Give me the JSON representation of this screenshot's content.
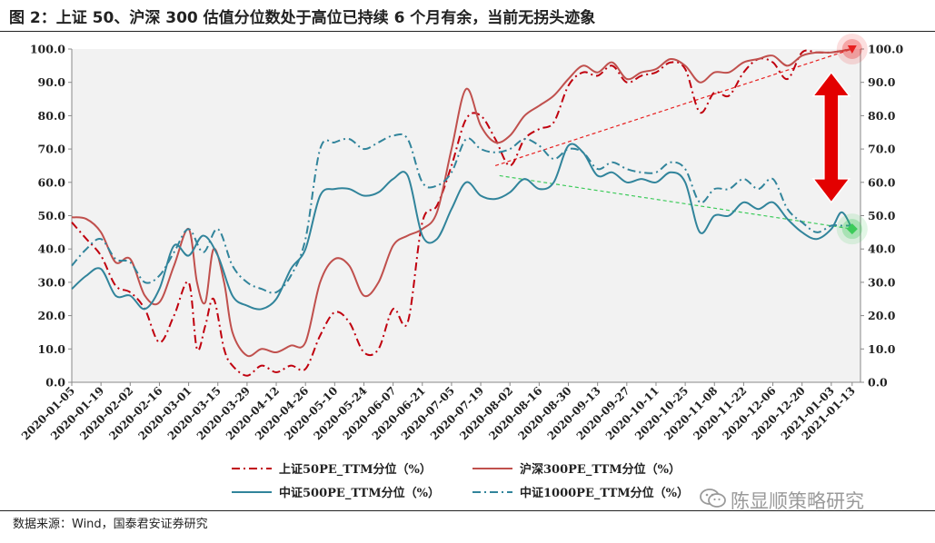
{
  "title": "图 2：上证 50、沪深 300 估值分位数处于高位已持续 6 个月有余，当前无拐头迹象",
  "source": "数据来源：Wind，国泰君安证券研究",
  "watermark": "陈显顺策略研究",
  "colors": {
    "sz50": "#C0000E",
    "hs300": "#C0504D",
    "zz500": "#31849B",
    "zz1000": "#31849B",
    "plot_bg": "#F2F2F2",
    "trend_red": "#E82020",
    "trend_green": "#3CCB5A",
    "arrow": "#E30000"
  },
  "chart_data": {
    "type": "line",
    "title": "",
    "ylim": [
      0,
      100
    ],
    "yticks": [
      "0.0",
      "10.0",
      "20.0",
      "30.0",
      "40.0",
      "50.0",
      "60.0",
      "70.0",
      "80.0",
      "90.0",
      "100.0"
    ],
    "y2ticks": [
      "0.0",
      "10.0",
      "20.0",
      "30.0",
      "40.0",
      "50.0",
      "60.0",
      "70.0",
      "80.0",
      "90.0",
      "100.0"
    ],
    "x_start": "2020-01-05",
    "x_end": "2021-01-17",
    "xticks": [
      "2020-01-05",
      "2020-01-19",
      "2020-02-02",
      "2020-02-16",
      "2020-03-01",
      "2020-03-15",
      "2020-03-29",
      "2020-04-12",
      "2020-04-26",
      "2020-05-10",
      "2020-05-24",
      "2020-06-07",
      "2020-06-21",
      "2020-07-05",
      "2020-07-19",
      "2020-08-02",
      "2020-08-16",
      "2020-08-30",
      "2020-09-13",
      "2020-09-27",
      "2020-10-11",
      "2020-10-25",
      "2020-11-08",
      "2020-11-22",
      "2020-12-06",
      "2020-12-20",
      "2021-01-03",
      "2021-01-13"
    ],
    "grid": false,
    "legend_position": "bottom",
    "series": [
      {
        "name": "上证50PE_TTM分位（%）",
        "style": "dashdot",
        "color_key": "sz50",
        "points": [
          [
            "2020-01-05",
            48
          ],
          [
            "2020-01-12",
            43
          ],
          [
            "2020-01-19",
            38
          ],
          [
            "2020-01-26",
            29
          ],
          [
            "2020-02-02",
            27
          ],
          [
            "2020-02-09",
            22
          ],
          [
            "2020-02-16",
            12
          ],
          [
            "2020-02-23",
            20
          ],
          [
            "2020-03-01",
            30
          ],
          [
            "2020-03-05",
            10
          ],
          [
            "2020-03-09",
            17
          ],
          [
            "2020-03-13",
            25
          ],
          [
            "2020-03-18",
            10
          ],
          [
            "2020-03-22",
            5
          ],
          [
            "2020-03-29",
            2
          ],
          [
            "2020-04-05",
            5
          ],
          [
            "2020-04-12",
            3
          ],
          [
            "2020-04-19",
            5
          ],
          [
            "2020-04-26",
            4
          ],
          [
            "2020-05-03",
            14
          ],
          [
            "2020-05-10",
            21
          ],
          [
            "2020-05-17",
            18
          ],
          [
            "2020-05-24",
            9
          ],
          [
            "2020-05-31",
            10
          ],
          [
            "2020-06-07",
            22
          ],
          [
            "2020-06-14",
            18
          ],
          [
            "2020-06-21",
            48
          ],
          [
            "2020-06-28",
            53
          ],
          [
            "2020-07-05",
            65
          ],
          [
            "2020-07-12",
            79
          ],
          [
            "2020-07-19",
            80
          ],
          [
            "2020-07-26",
            73
          ],
          [
            "2020-08-02",
            65
          ],
          [
            "2020-08-09",
            73
          ],
          [
            "2020-08-16",
            76
          ],
          [
            "2020-08-23",
            78
          ],
          [
            "2020-08-30",
            89
          ],
          [
            "2020-09-06",
            93
          ],
          [
            "2020-09-13",
            92
          ],
          [
            "2020-09-20",
            95
          ],
          [
            "2020-09-27",
            90
          ],
          [
            "2020-10-04",
            92
          ],
          [
            "2020-10-11",
            93
          ],
          [
            "2020-10-18",
            96
          ],
          [
            "2020-10-25",
            94
          ],
          [
            "2020-11-01",
            81
          ],
          [
            "2020-11-08",
            87
          ],
          [
            "2020-11-15",
            86
          ],
          [
            "2020-11-22",
            93
          ],
          [
            "2020-11-29",
            97
          ],
          [
            "2020-12-06",
            96
          ],
          [
            "2020-12-13",
            91
          ],
          [
            "2020-12-20",
            99
          ],
          [
            "2020-12-27",
            99
          ],
          [
            "2021-01-03",
            99
          ],
          [
            "2021-01-13",
            100
          ]
        ]
      },
      {
        "name": "沪深300PE_TTM分位（%）",
        "style": "solid",
        "color_key": "hs300",
        "points": [
          [
            "2020-01-05",
            49.5
          ],
          [
            "2020-01-12",
            49
          ],
          [
            "2020-01-19",
            45
          ],
          [
            "2020-01-26",
            36
          ],
          [
            "2020-02-02",
            37
          ],
          [
            "2020-02-09",
            26
          ],
          [
            "2020-02-16",
            24
          ],
          [
            "2020-02-23",
            35
          ],
          [
            "2020-03-01",
            46
          ],
          [
            "2020-03-05",
            30
          ],
          [
            "2020-03-09",
            24
          ],
          [
            "2020-03-13",
            40
          ],
          [
            "2020-03-18",
            30
          ],
          [
            "2020-03-22",
            15
          ],
          [
            "2020-03-29",
            8
          ],
          [
            "2020-04-05",
            10
          ],
          [
            "2020-04-12",
            9
          ],
          [
            "2020-04-19",
            11
          ],
          [
            "2020-04-26",
            12
          ],
          [
            "2020-05-03",
            30
          ],
          [
            "2020-05-10",
            37
          ],
          [
            "2020-05-17",
            35
          ],
          [
            "2020-05-24",
            26
          ],
          [
            "2020-05-31",
            30
          ],
          [
            "2020-06-07",
            41
          ],
          [
            "2020-06-14",
            44
          ],
          [
            "2020-06-21",
            46
          ],
          [
            "2020-06-28",
            51
          ],
          [
            "2020-07-05",
            70
          ],
          [
            "2020-07-12",
            88
          ],
          [
            "2020-07-19",
            77
          ],
          [
            "2020-07-26",
            72
          ],
          [
            "2020-08-02",
            74
          ],
          [
            "2020-08-09",
            80
          ],
          [
            "2020-08-16",
            83
          ],
          [
            "2020-08-23",
            86
          ],
          [
            "2020-08-30",
            91
          ],
          [
            "2020-09-06",
            95
          ],
          [
            "2020-09-13",
            93
          ],
          [
            "2020-09-20",
            96
          ],
          [
            "2020-09-27",
            91
          ],
          [
            "2020-10-04",
            93
          ],
          [
            "2020-10-11",
            94
          ],
          [
            "2020-10-18",
            97
          ],
          [
            "2020-10-25",
            95
          ],
          [
            "2020-11-01",
            90
          ],
          [
            "2020-11-08",
            93
          ],
          [
            "2020-11-15",
            93
          ],
          [
            "2020-11-22",
            96
          ],
          [
            "2020-11-29",
            97
          ],
          [
            "2020-12-06",
            98
          ],
          [
            "2020-12-13",
            95
          ],
          [
            "2020-12-20",
            98
          ],
          [
            "2020-12-27",
            99
          ],
          [
            "2021-01-03",
            99
          ],
          [
            "2021-01-13",
            100
          ]
        ]
      },
      {
        "name": "中证500PE_TTM分位（%）",
        "style": "solid",
        "color_key": "zz500",
        "points": [
          [
            "2020-01-05",
            28
          ],
          [
            "2020-01-12",
            32
          ],
          [
            "2020-01-19",
            34
          ],
          [
            "2020-01-26",
            26
          ],
          [
            "2020-02-02",
            26
          ],
          [
            "2020-02-09",
            22
          ],
          [
            "2020-02-16",
            28
          ],
          [
            "2020-02-23",
            41
          ],
          [
            "2020-03-01",
            38
          ],
          [
            "2020-03-08",
            44
          ],
          [
            "2020-03-15",
            38
          ],
          [
            "2020-03-22",
            26
          ],
          [
            "2020-03-29",
            23
          ],
          [
            "2020-04-05",
            22
          ],
          [
            "2020-04-12",
            25
          ],
          [
            "2020-04-19",
            34
          ],
          [
            "2020-04-26",
            40
          ],
          [
            "2020-05-03",
            56
          ],
          [
            "2020-05-10",
            58
          ],
          [
            "2020-05-17",
            58
          ],
          [
            "2020-05-24",
            56
          ],
          [
            "2020-05-31",
            57
          ],
          [
            "2020-06-07",
            61
          ],
          [
            "2020-06-14",
            62
          ],
          [
            "2020-06-21",
            44
          ],
          [
            "2020-06-28",
            43
          ],
          [
            "2020-07-05",
            52
          ],
          [
            "2020-07-12",
            60
          ],
          [
            "2020-07-19",
            56
          ],
          [
            "2020-07-26",
            55
          ],
          [
            "2020-08-02",
            57
          ],
          [
            "2020-08-09",
            61
          ],
          [
            "2020-08-16",
            58
          ],
          [
            "2020-08-23",
            60
          ],
          [
            "2020-08-30",
            71
          ],
          [
            "2020-09-06",
            69
          ],
          [
            "2020-09-13",
            62
          ],
          [
            "2020-09-20",
            63
          ],
          [
            "2020-09-27",
            60
          ],
          [
            "2020-10-04",
            61
          ],
          [
            "2020-10-11",
            60
          ],
          [
            "2020-10-18",
            63
          ],
          [
            "2020-10-25",
            60
          ],
          [
            "2020-11-01",
            45
          ],
          [
            "2020-11-08",
            50
          ],
          [
            "2020-11-15",
            50
          ],
          [
            "2020-11-22",
            54
          ],
          [
            "2020-11-29",
            52
          ],
          [
            "2020-12-06",
            54
          ],
          [
            "2020-12-13",
            49
          ],
          [
            "2020-12-20",
            45
          ],
          [
            "2020-12-27",
            43
          ],
          [
            "2021-01-03",
            46
          ],
          [
            "2021-01-08",
            51
          ],
          [
            "2021-01-13",
            46
          ]
        ]
      },
      {
        "name": "中证1000PE_TTM分位（%）",
        "style": "dashdot",
        "color_key": "zz1000",
        "points": [
          [
            "2020-01-05",
            35
          ],
          [
            "2020-01-12",
            40
          ],
          [
            "2020-01-19",
            43
          ],
          [
            "2020-01-26",
            37
          ],
          [
            "2020-02-02",
            36
          ],
          [
            "2020-02-09",
            30
          ],
          [
            "2020-02-16",
            32
          ],
          [
            "2020-02-23",
            39
          ],
          [
            "2020-03-01",
            46
          ],
          [
            "2020-03-08",
            39
          ],
          [
            "2020-03-15",
            46
          ],
          [
            "2020-03-22",
            35
          ],
          [
            "2020-03-29",
            30
          ],
          [
            "2020-04-05",
            28
          ],
          [
            "2020-04-12",
            27
          ],
          [
            "2020-04-19",
            32
          ],
          [
            "2020-04-26",
            43
          ],
          [
            "2020-05-03",
            70
          ],
          [
            "2020-05-10",
            72
          ],
          [
            "2020-05-17",
            73
          ],
          [
            "2020-05-24",
            70
          ],
          [
            "2020-05-31",
            72
          ],
          [
            "2020-06-07",
            74
          ],
          [
            "2020-06-14",
            73
          ],
          [
            "2020-06-21",
            60
          ],
          [
            "2020-06-28",
            59
          ],
          [
            "2020-07-05",
            63
          ],
          [
            "2020-07-12",
            73
          ],
          [
            "2020-07-19",
            70
          ],
          [
            "2020-07-26",
            69
          ],
          [
            "2020-08-02",
            70
          ],
          [
            "2020-08-09",
            73
          ],
          [
            "2020-08-16",
            71
          ],
          [
            "2020-08-23",
            67
          ],
          [
            "2020-08-30",
            70
          ],
          [
            "2020-09-06",
            69
          ],
          [
            "2020-09-13",
            64
          ],
          [
            "2020-09-20",
            66
          ],
          [
            "2020-09-27",
            64
          ],
          [
            "2020-10-04",
            63
          ],
          [
            "2020-10-11",
            63
          ],
          [
            "2020-10-18",
            66
          ],
          [
            "2020-10-25",
            64
          ],
          [
            "2020-11-01",
            54
          ],
          [
            "2020-11-08",
            58
          ],
          [
            "2020-11-15",
            58
          ],
          [
            "2020-11-22",
            61
          ],
          [
            "2020-11-29",
            58
          ],
          [
            "2020-12-06",
            61
          ],
          [
            "2020-12-13",
            52
          ],
          [
            "2020-12-20",
            48
          ],
          [
            "2020-12-27",
            45
          ],
          [
            "2021-01-03",
            47
          ],
          [
            "2021-01-08",
            47
          ],
          [
            "2021-01-13",
            47
          ]
        ]
      }
    ],
    "trendlines": [
      {
        "color_key": "trend_red",
        "from": [
          "2020-07-26",
          65
        ],
        "to": [
          "2021-01-13",
          100
        ]
      },
      {
        "color_key": "trend_green",
        "from": [
          "2020-07-28",
          62
        ],
        "to": [
          "2021-01-13",
          46
        ]
      }
    ],
    "markers": [
      {
        "kind": "triangle-down",
        "color_key": "trend_red",
        "at": [
          "2021-01-13",
          100
        ]
      },
      {
        "kind": "diamond",
        "color_key": "trend_green",
        "at": [
          "2021-01-13",
          46
        ]
      }
    ],
    "annotation_arrow": {
      "color_key": "arrow",
      "from_y": 93,
      "to_y": 54,
      "at_date": "2021-01-03"
    }
  }
}
